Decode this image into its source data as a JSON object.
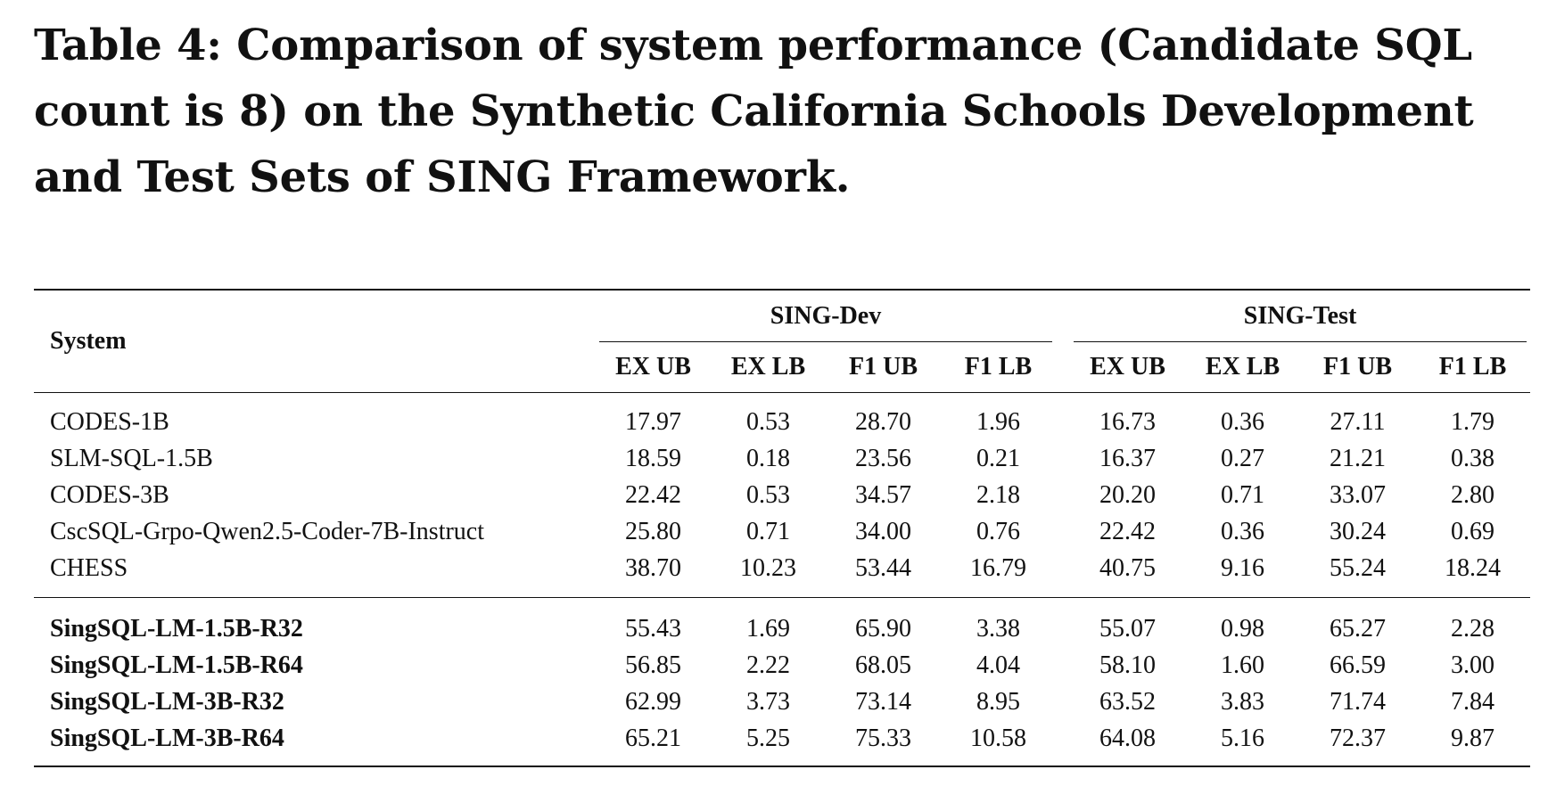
{
  "caption": "Table 4: Comparison of system performance (Candidate SQL count is 8) on the Synthetic California Schools Development and Test Sets of SING Framework.",
  "table": {
    "system_header": "System",
    "groups": [
      "SING-Dev",
      "SING-Test"
    ],
    "metrics": [
      "EX UB",
      "EX LB",
      "F1 UB",
      "F1 LB"
    ],
    "baseline_rows": [
      {
        "name": "CODES-1B",
        "dev": [
          "17.97",
          "0.53",
          "28.70",
          "1.96"
        ],
        "test": [
          "16.73",
          "0.36",
          "27.11",
          "1.79"
        ]
      },
      {
        "name": "SLM-SQL-1.5B",
        "dev": [
          "18.59",
          "0.18",
          "23.56",
          "0.21"
        ],
        "test": [
          "16.37",
          "0.27",
          "21.21",
          "0.38"
        ]
      },
      {
        "name": "CODES-3B",
        "dev": [
          "22.42",
          "0.53",
          "34.57",
          "2.18"
        ],
        "test": [
          "20.20",
          "0.71",
          "33.07",
          "2.80"
        ]
      },
      {
        "name": "CscSQL-Grpo-Qwen2.5-Coder-7B-Instruct",
        "dev": [
          "25.80",
          "0.71",
          "34.00",
          "0.76"
        ],
        "test": [
          "22.42",
          "0.36",
          "30.24",
          "0.69"
        ]
      },
      {
        "name": "CHESS",
        "dev": [
          "38.70",
          "10.23",
          "53.44",
          "16.79"
        ],
        "test": [
          "40.75",
          "9.16",
          "55.24",
          "18.24"
        ]
      }
    ],
    "ours_rows": [
      {
        "name": "SingSQL-LM-1.5B-R32",
        "dev": [
          "55.43",
          "1.69",
          "65.90",
          "3.38"
        ],
        "test": [
          "55.07",
          "0.98",
          "65.27",
          "2.28"
        ]
      },
      {
        "name": "SingSQL-LM-1.5B-R64",
        "dev": [
          "56.85",
          "2.22",
          "68.05",
          "4.04"
        ],
        "test": [
          "58.10",
          "1.60",
          "66.59",
          "3.00"
        ]
      },
      {
        "name": "SingSQL-LM-3B-R32",
        "dev": [
          "62.99",
          "3.73",
          "73.14",
          "8.95"
        ],
        "test": [
          "63.52",
          "3.83",
          "71.74",
          "7.84"
        ]
      },
      {
        "name": "SingSQL-LM-3B-R64",
        "dev": [
          "65.21",
          "5.25",
          "75.33",
          "10.58"
        ],
        "test": [
          "64.08",
          "5.16",
          "72.37",
          "9.87"
        ]
      }
    ]
  }
}
